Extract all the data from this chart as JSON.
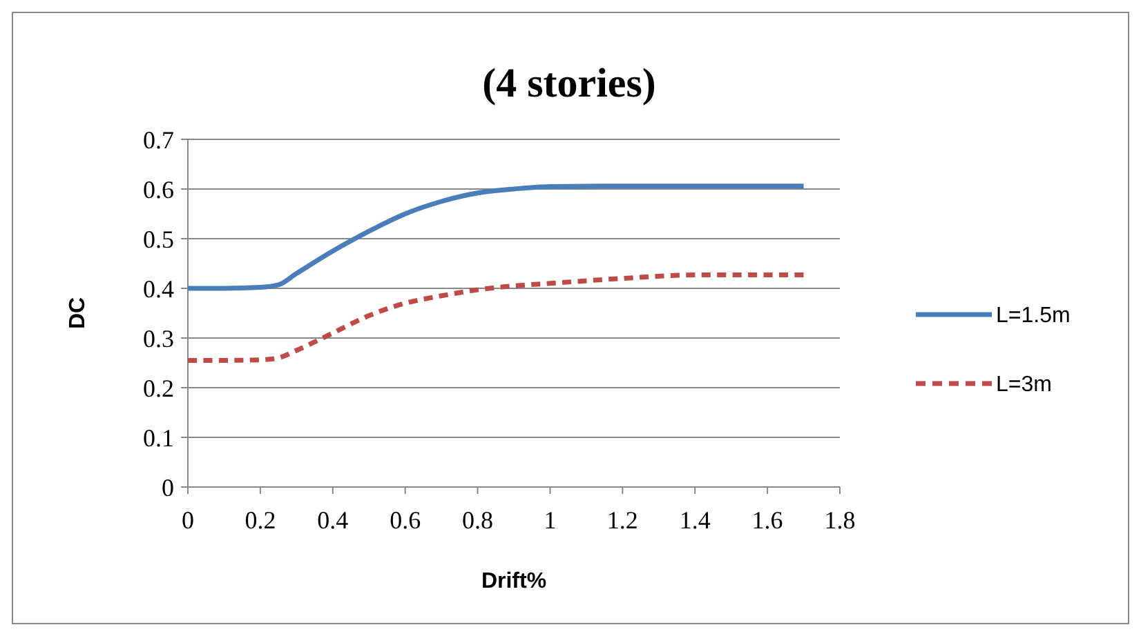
{
  "chart_data": {
    "type": "line",
    "title": "(4 stories)",
    "xlabel": "Drift%",
    "ylabel": "DC",
    "xlim": [
      0,
      1.8
    ],
    "xticks": [
      0,
      0.2,
      0.4,
      0.6,
      0.8,
      1,
      1.2,
      1.4,
      1.6,
      1.8
    ],
    "ylim": [
      0,
      0.7
    ],
    "yticks": [
      0,
      0.1,
      0.2,
      0.3,
      0.4,
      0.5,
      0.6,
      0.7
    ],
    "grid": "y",
    "legend": "right",
    "marker": "none",
    "x": [
      0,
      0.1,
      0.2,
      0.25,
      0.3,
      0.4,
      0.5,
      0.6,
      0.7,
      0.8,
      0.9,
      1.0,
      1.2,
      1.4,
      1.7
    ],
    "series": [
      {
        "name": "L=1.5m",
        "color": "#4a7ebb",
        "line_style": "solid",
        "values": [
          0.4,
          0.4,
          0.402,
          0.407,
          0.43,
          0.475,
          0.515,
          0.55,
          0.575,
          0.592,
          0.6,
          0.605,
          0.606,
          0.606,
          0.606
        ]
      },
      {
        "name": "L=3m",
        "color": "#be4b48",
        "line_style": "dashed",
        "values": [
          0.255,
          0.255,
          0.256,
          0.26,
          0.275,
          0.31,
          0.345,
          0.37,
          0.385,
          0.397,
          0.405,
          0.41,
          0.42,
          0.427,
          0.427
        ]
      }
    ]
  }
}
